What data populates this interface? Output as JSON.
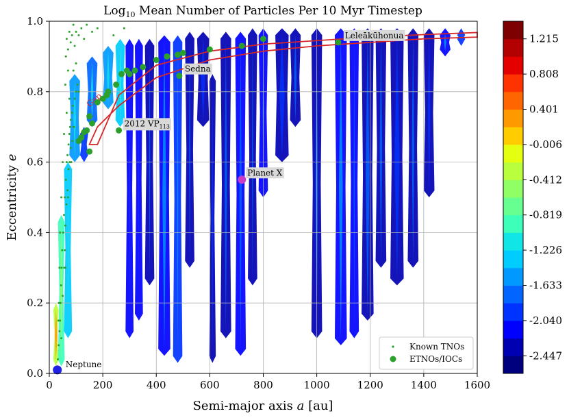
{
  "chart_data": {
    "type": "heatmap",
    "title": "Log",
    "title_sub": "10",
    "title_rest": " Mean Number of Particles Per 10 Myr Timestep",
    "xlabel": "Semi-major axis ",
    "xlabel_var": "a",
    "xlabel_unit": " [au]",
    "ylabel": "Eccentricity ",
    "ylabel_var": "e",
    "xlim": [
      0,
      1600
    ],
    "ylim": [
      0.0,
      1.0
    ],
    "x_ticks": [
      0,
      200,
      400,
      600,
      800,
      1000,
      1200,
      1400,
      1600
    ],
    "x_tick_labels": [
      "0",
      "200",
      "400",
      "600",
      "800",
      "1000",
      "1200",
      "1400",
      "1600"
    ],
    "y_ticks": [
      0.0,
      0.2,
      0.4,
      0.6,
      0.8,
      1.0
    ],
    "y_tick_labels": [
      "0.0",
      "0.2",
      "0.4",
      "0.6",
      "0.8",
      "1.0"
    ],
    "grid": true,
    "colorbar": {
      "labels": [
        "1.215",
        "0.808",
        "0.401",
        "-0.006",
        "-0.412",
        "-0.819",
        "-1.226",
        "-1.633",
        "-2.040",
        "-2.447"
      ],
      "min": -2.65,
      "max": 1.42,
      "bands": [
        "#00007f",
        "#0000b3",
        "#0000ff",
        "#0033ff",
        "#0066ff",
        "#0099ff",
        "#00ccff",
        "#11e5e5",
        "#3dffba",
        "#66ff90",
        "#90ff66",
        "#baff3d",
        "#e5ff11",
        "#ffcc00",
        "#ff9900",
        "#ff6600",
        "#ff3300",
        "#e50000",
        "#b30000",
        "#7f0000"
      ]
    },
    "heat_columns": [
      {
        "a": 25,
        "w": 20,
        "e0": 0.02,
        "e1": 0.2,
        "v": -0.3
      },
      {
        "a": 45,
        "w": 25,
        "e0": 0.02,
        "e1": 0.45,
        "v": -0.9
      },
      {
        "a": 70,
        "w": 30,
        "e0": 0.1,
        "e1": 0.6,
        "v": -1.3
      },
      {
        "a": 95,
        "w": 40,
        "e0": 0.6,
        "e1": 0.85,
        "v": -1.6
      },
      {
        "a": 130,
        "w": 30,
        "e0": 0.6,
        "e1": 0.7,
        "v": -1.9
      },
      {
        "a": 160,
        "w": 40,
        "e0": 0.7,
        "e1": 0.9,
        "v": -1.7
      },
      {
        "a": 220,
        "w": 40,
        "e0": 0.75,
        "e1": 0.93,
        "v": -1.6
      },
      {
        "a": 265,
        "w": 35,
        "e0": 0.7,
        "e1": 0.95,
        "v": -1.4
      },
      {
        "a": 300,
        "w": 30,
        "e0": 0.1,
        "e1": 0.95,
        "v": -2.1
      },
      {
        "a": 335,
        "w": 30,
        "e0": 0.15,
        "e1": 0.95,
        "v": -2.2
      },
      {
        "a": 375,
        "w": 35,
        "e0": 0.25,
        "e1": 0.95,
        "v": -2.3
      },
      {
        "a": 430,
        "w": 45,
        "e0": 0.05,
        "e1": 0.96,
        "v": -2.1
      },
      {
        "a": 480,
        "w": 35,
        "e0": 0.03,
        "e1": 0.96,
        "v": -2.0
      },
      {
        "a": 525,
        "w": 35,
        "e0": 0.3,
        "e1": 0.97,
        "v": -2.3
      },
      {
        "a": 575,
        "w": 45,
        "e0": 0.7,
        "e1": 0.97,
        "v": -2.4
      },
      {
        "a": 610,
        "w": 25,
        "e0": 0.03,
        "e1": 0.85,
        "v": -2.4
      },
      {
        "a": 660,
        "w": 40,
        "e0": 0.1,
        "e1": 0.97,
        "v": -2.3
      },
      {
        "a": 715,
        "w": 40,
        "e0": 0.05,
        "e1": 0.97,
        "v": -2.2
      },
      {
        "a": 760,
        "w": 35,
        "e0": 0.25,
        "e1": 0.98,
        "v": -2.3
      },
      {
        "a": 800,
        "w": 35,
        "e0": 0.5,
        "e1": 0.98,
        "v": -2.1
      },
      {
        "a": 870,
        "w": 50,
        "e0": 0.6,
        "e1": 0.98,
        "v": -2.4
      },
      {
        "a": 920,
        "w": 40,
        "e0": 0.7,
        "e1": 0.98,
        "v": -2.3
      },
      {
        "a": 1000,
        "w": 40,
        "e0": 0.1,
        "e1": 0.98,
        "v": -2.3
      },
      {
        "a": 1090,
        "w": 45,
        "e0": 0.08,
        "e1": 0.98,
        "v": -2.1
      },
      {
        "a": 1140,
        "w": 35,
        "e0": 0.1,
        "e1": 0.98,
        "v": -2.2
      },
      {
        "a": 1190,
        "w": 45,
        "e0": 0.15,
        "e1": 0.98,
        "v": -2.3
      },
      {
        "a": 1240,
        "w": 40,
        "e0": 0.3,
        "e1": 0.98,
        "v": -2.3
      },
      {
        "a": 1300,
        "w": 50,
        "e0": 0.25,
        "e1": 0.98,
        "v": -2.4
      },
      {
        "a": 1360,
        "w": 40,
        "e0": 0.3,
        "e1": 0.98,
        "v": -2.3
      },
      {
        "a": 1420,
        "w": 40,
        "e0": 0.5,
        "e1": 0.98,
        "v": -2.4
      },
      {
        "a": 1480,
        "w": 40,
        "e0": 0.9,
        "e1": 0.98,
        "v": -2.1
      },
      {
        "a": 1540,
        "w": 30,
        "e0": 0.93,
        "e1": 0.98,
        "v": -2.0
      }
    ],
    "known_tnos": [
      [
        32,
        0.04
      ],
      [
        35,
        0.08
      ],
      [
        38,
        0.12
      ],
      [
        40,
        0.15
      ],
      [
        42,
        0.2
      ],
      [
        44,
        0.25
      ],
      [
        45,
        0.1
      ],
      [
        46,
        0.3
      ],
      [
        48,
        0.35
      ],
      [
        50,
        0.22
      ],
      [
        52,
        0.4
      ],
      [
        55,
        0.45
      ],
      [
        58,
        0.5
      ],
      [
        60,
        0.3
      ],
      [
        62,
        0.55
      ],
      [
        65,
        0.6
      ],
      [
        68,
        0.62
      ],
      [
        70,
        0.5
      ],
      [
        72,
        0.65
      ],
      [
        75,
        0.68
      ],
      [
        78,
        0.7
      ],
      [
        80,
        0.72
      ],
      [
        82,
        0.6
      ],
      [
        85,
        0.74
      ],
      [
        88,
        0.76
      ],
      [
        90,
        0.7
      ],
      [
        95,
        0.78
      ],
      [
        100,
        0.8
      ],
      [
        105,
        0.82
      ],
      [
        110,
        0.8
      ],
      [
        60,
        0.82
      ],
      [
        62,
        0.9
      ],
      [
        65,
        0.95
      ],
      [
        70,
        0.92
      ],
      [
        75,
        0.97
      ],
      [
        80,
        0.94
      ],
      [
        85,
        0.96
      ],
      [
        90,
        0.99
      ],
      [
        95,
        0.93
      ],
      [
        100,
        0.97
      ],
      [
        110,
        0.96
      ],
      [
        120,
        0.98
      ],
      [
        130,
        0.95
      ],
      [
        140,
        0.99
      ],
      [
        160,
        0.97
      ],
      [
        180,
        0.98
      ],
      [
        240,
        0.96
      ],
      [
        280,
        0.98
      ],
      [
        90,
        0.86
      ],
      [
        100,
        0.88
      ],
      [
        70,
        0.86
      ],
      [
        75,
        0.78
      ],
      [
        65,
        0.74
      ],
      [
        55,
        0.68
      ],
      [
        50,
        0.6
      ],
      [
        45,
        0.5
      ],
      [
        40,
        0.4
      ],
      [
        38,
        0.3
      ],
      [
        36,
        0.2
      ],
      [
        34,
        0.15
      ],
      [
        56,
        0.3
      ],
      [
        58,
        0.35
      ],
      [
        60,
        0.42
      ],
      [
        64,
        0.48
      ],
      [
        68,
        0.52
      ],
      [
        72,
        0.58
      ],
      [
        76,
        0.6
      ],
      [
        80,
        0.64
      ],
      [
        86,
        0.66
      ],
      [
        92,
        0.7
      ]
    ],
    "etnos_iocs": [
      [
        110,
        0.66
      ],
      [
        120,
        0.67
      ],
      [
        140,
        0.69
      ],
      [
        150,
        0.73
      ],
      [
        160,
        0.71
      ],
      [
        180,
        0.77
      ],
      [
        200,
        0.78
      ],
      [
        220,
        0.8
      ],
      [
        250,
        0.82
      ],
      [
        270,
        0.85
      ],
      [
        290,
        0.86
      ],
      [
        300,
        0.85
      ],
      [
        320,
        0.86
      ],
      [
        350,
        0.87
      ],
      [
        400,
        0.89
      ],
      [
        440,
        0.9
      ],
      [
        480,
        0.905
      ],
      [
        500,
        0.91
      ],
      [
        600,
        0.92
      ],
      [
        720,
        0.93
      ],
      [
        800,
        0.95
      ],
      [
        1080,
        0.94
      ],
      [
        260,
        0.69
      ],
      [
        486,
        0.845
      ],
      [
        215,
        0.79
      ],
      [
        130,
        0.685
      ],
      [
        150,
        0.63
      ]
    ],
    "gap_region": [
      [
        150,
        0.65
      ],
      [
        180,
        0.65
      ],
      [
        260,
        0.79
      ],
      [
        400,
        0.875
      ],
      [
        600,
        0.915
      ],
      [
        800,
        0.935
      ],
      [
        1000,
        0.945
      ],
      [
        1200,
        0.955
      ],
      [
        1400,
        0.962
      ],
      [
        1600,
        0.968
      ],
      [
        1600,
        0.955
      ],
      [
        1400,
        0.95
      ],
      [
        1200,
        0.94
      ],
      [
        1000,
        0.93
      ],
      [
        800,
        0.915
      ],
      [
        600,
        0.89
      ],
      [
        400,
        0.84
      ],
      [
        260,
        0.76
      ],
      [
        180,
        0.7
      ]
    ],
    "annotations": [
      {
        "label": "2012 VP",
        "sub": "113",
        "a": 260,
        "e": 0.69
      },
      {
        "label": "Sedna",
        "sub": "",
        "a": 486,
        "e": 0.845
      },
      {
        "label": "Planet X",
        "sub": "",
        "a": 720,
        "e": 0.55
      },
      {
        "label": "Leleākūhonua",
        "sub": "",
        "a": 1085,
        "e": 0.94
      }
    ],
    "gap_label": "Gap",
    "planet_x": {
      "a": 720,
      "e": 0.55,
      "color": "#c83cc8"
    },
    "neptune": {
      "label": "Neptune",
      "a": 30,
      "e": 0.01,
      "color": "#1f1fe6"
    },
    "legend": {
      "placement": "lower-right",
      "items": [
        {
          "label": "Known TNOs",
          "marker": "small-dot"
        },
        {
          "label": "ETNOs/IOCs",
          "marker": "large-dot"
        }
      ]
    },
    "colors": {
      "tno": "#2ca02c",
      "etno": "#2ca02c",
      "gap": "#d62728"
    }
  }
}
